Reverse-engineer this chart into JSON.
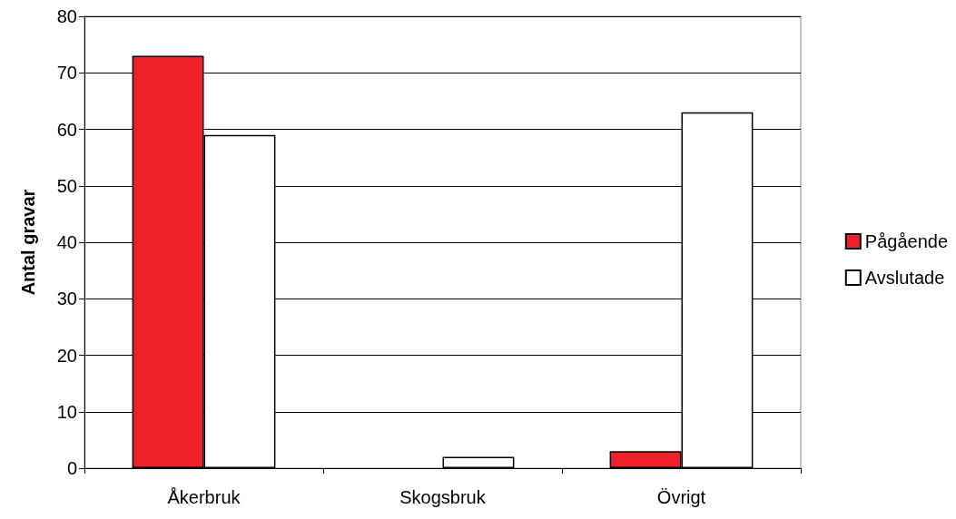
{
  "chart_data": {
    "type": "bar",
    "ylabel": "Antal gravar",
    "categories": [
      "Åkerbruk",
      "Skogsbruk",
      "Övrigt"
    ],
    "series": [
      {
        "name": "Pågående",
        "color": "#ee2128",
        "values": [
          73,
          0,
          3
        ]
      },
      {
        "name": "Avslutade",
        "color": "#ffffff",
        "values": [
          59,
          2,
          63
        ]
      }
    ],
    "ylim": [
      0,
      80
    ],
    "yticks": [
      0,
      10,
      20,
      30,
      40,
      50,
      60,
      70,
      80
    ],
    "grid": "y",
    "legend": "right"
  }
}
